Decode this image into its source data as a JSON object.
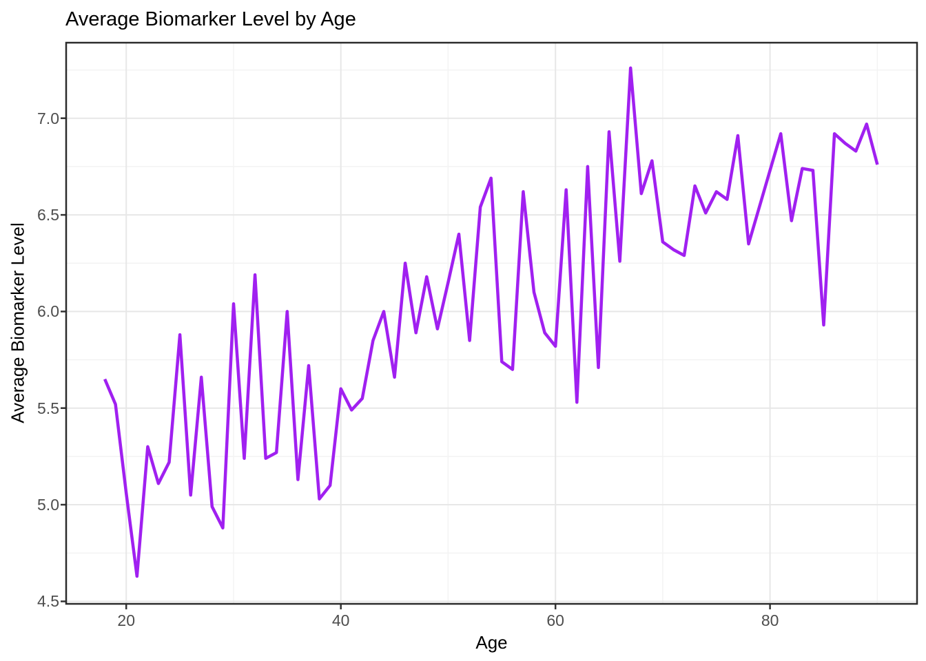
{
  "page": {
    "background": "#FFFFFF"
  },
  "chart_data": {
    "type": "line",
    "title": "Average Biomarker Level by Age",
    "xlabel": "Age",
    "ylabel": "Average Biomarker Level",
    "legend": "none",
    "grid": true,
    "x": [
      18,
      19,
      20,
      21,
      22,
      23,
      24,
      25,
      26,
      27,
      28,
      29,
      30,
      31,
      32,
      33,
      34,
      35,
      36,
      37,
      38,
      39,
      40,
      41,
      42,
      43,
      44,
      45,
      46,
      47,
      48,
      49,
      50,
      51,
      52,
      53,
      54,
      55,
      56,
      57,
      58,
      59,
      60,
      61,
      62,
      63,
      64,
      65,
      66,
      67,
      68,
      69,
      70,
      71,
      72,
      73,
      74,
      75,
      76,
      77,
      78,
      79,
      80,
      81,
      82,
      83,
      84,
      85,
      86,
      87,
      88,
      89,
      90
    ],
    "series": [
      {
        "name": "Average Biomarker Level",
        "color": "#A020F0",
        "values": [
          5.65,
          5.52,
          5.06,
          4.63,
          5.3,
          5.11,
          5.22,
          5.88,
          5.05,
          5.66,
          4.99,
          4.88,
          6.04,
          5.24,
          6.19,
          5.24,
          5.27,
          6.0,
          5.13,
          5.72,
          5.03,
          5.1,
          5.6,
          5.49,
          5.55,
          5.85,
          6.0,
          5.66,
          6.25,
          5.89,
          6.18,
          5.91,
          6.15,
          6.4,
          5.85,
          6.54,
          6.69,
          5.74,
          5.7,
          6.62,
          6.1,
          5.89,
          5.82,
          6.63,
          5.53,
          6.75,
          5.71,
          6.93,
          6.26,
          7.26,
          6.61,
          6.78,
          6.36,
          6.32,
          6.29,
          6.65,
          6.51,
          6.62,
          6.58,
          6.91,
          6.35,
          6.54,
          6.73,
          6.92,
          6.47,
          6.74,
          6.73,
          5.93,
          6.92,
          6.87,
          6.83,
          6.97,
          6.76
        ]
      }
    ],
    "x_ticks": {
      "values": [
        20,
        40,
        60,
        80
      ],
      "labels": [
        "20",
        "40",
        "60",
        "80"
      ]
    },
    "y_ticks": {
      "values": [
        4.5,
        5.0,
        5.5,
        6.0,
        6.5,
        7.0
      ],
      "labels": [
        "4.5",
        "5.0",
        "5.5",
        "6.0",
        "6.5",
        "7.0"
      ]
    },
    "x_minor": [
      30,
      50,
      70,
      90
    ],
    "y_minor": [
      4.75,
      5.25,
      5.75,
      6.25,
      6.75,
      7.25
    ],
    "xlim": [
      14.4,
      93.7
    ],
    "ylim": [
      4.487,
      7.391
    ],
    "colors": {
      "line": "#A020F0",
      "grid_major": "#E7E7E7",
      "grid_minor": "#F3F3F3",
      "panel_border": "#2B2B2B",
      "tick_mark": "#333333",
      "tick_label": "#4D4D4D",
      "text": "#000000",
      "panel_background": "#FFFFFF"
    }
  }
}
